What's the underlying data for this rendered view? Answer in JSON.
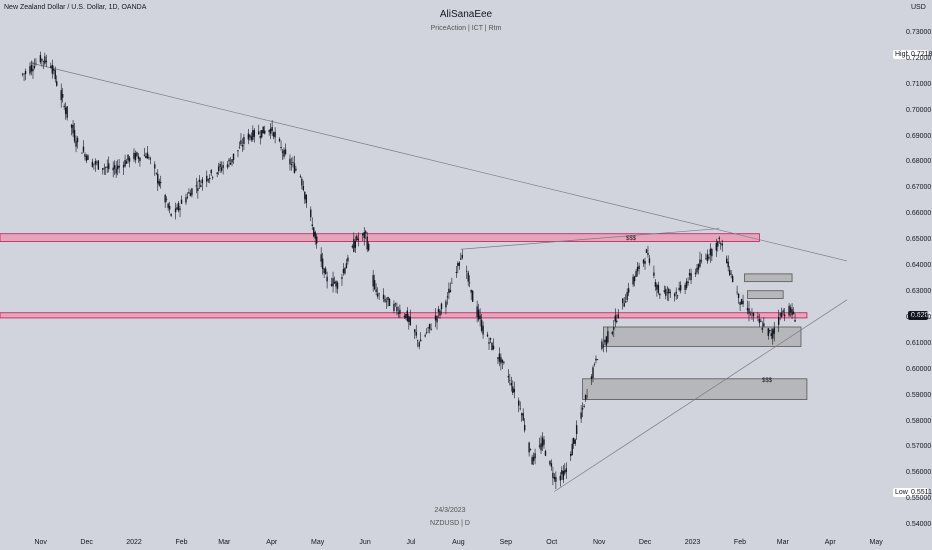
{
  "header": {
    "symbol_title": "New Zealand Dollar / U.S. Dollar, 1D, OANDA",
    "author": "AliSanaEee",
    "tags": "PriceAction | ICT | Rtm",
    "currency": "USD"
  },
  "footer": {
    "date": "24/3/2023",
    "ticker": "NZDUSD | D"
  },
  "price_labels": {
    "high_label": "High",
    "high_value": "0.72186",
    "current_value": "0.62015",
    "low_label": "Low",
    "low_value": "0.55118"
  },
  "annotations": {
    "liquidity_top": "$$$",
    "liquidity_bottom": "$$$"
  },
  "colors": {
    "background": "#d1d4dc",
    "candle": "#131722",
    "zone_red": "#e8a0b4",
    "zone_red_border": "#c2185b",
    "zone_gray": "#9e9e9e",
    "current_price_bg": "#131722"
  },
  "chart_data": {
    "type": "candlestick",
    "ylim": [
      0.542,
      0.735
    ],
    "y_ticks": [
      "0.73000",
      "0.72000",
      "0.71000",
      "0.70000",
      "0.69000",
      "0.68000",
      "0.67000",
      "0.66000",
      "0.65000",
      "0.64000",
      "0.63000",
      "0.62000",
      "0.61000",
      "0.60000",
      "0.59000",
      "0.58000",
      "0.57000",
      "0.56000",
      "0.55000",
      "0.54000"
    ],
    "x_ticks": [
      "Nov",
      "Dec",
      "2022",
      "Feb",
      "Mar",
      "Apr",
      "May",
      "Jun",
      "Jul",
      "Aug",
      "Sep",
      "Oct",
      "Nov",
      "Dec",
      "2023",
      "Feb",
      "Mar",
      "Apr",
      "May"
    ],
    "price_path": [
      [
        "2021-10-20",
        0.714
      ],
      [
        "2021-11-01",
        0.72
      ],
      [
        "2021-11-08",
        0.718
      ],
      [
        "2021-11-15",
        0.705
      ],
      [
        "2021-11-25",
        0.688
      ],
      [
        "2021-12-05",
        0.68
      ],
      [
        "2021-12-20",
        0.677
      ],
      [
        "2022-01-01",
        0.682
      ],
      [
        "2022-01-12",
        0.683
      ],
      [
        "2022-01-20",
        0.672
      ],
      [
        "2022-01-28",
        0.659
      ],
      [
        "2022-02-10",
        0.669
      ],
      [
        "2022-02-22",
        0.675
      ],
      [
        "2022-03-08",
        0.68
      ],
      [
        "2022-03-20",
        0.69
      ],
      [
        "2022-04-05",
        0.693
      ],
      [
        "2022-04-15",
        0.682
      ],
      [
        "2022-04-25",
        0.675
      ],
      [
        "2022-05-05",
        0.65
      ],
      [
        "2022-05-12",
        0.635
      ],
      [
        "2022-05-20",
        0.633
      ],
      [
        "2022-06-01",
        0.65
      ],
      [
        "2022-06-08",
        0.652
      ],
      [
        "2022-06-14",
        0.63
      ],
      [
        "2022-06-25",
        0.625
      ],
      [
        "2022-07-05",
        0.621
      ],
      [
        "2022-07-14",
        0.61
      ],
      [
        "2022-07-25",
        0.62
      ],
      [
        "2022-08-02",
        0.628
      ],
      [
        "2022-08-11",
        0.645
      ],
      [
        "2022-08-20",
        0.625
      ],
      [
        "2022-08-26",
        0.615
      ],
      [
        "2022-09-10",
        0.6
      ],
      [
        "2022-09-20",
        0.585
      ],
      [
        "2022-09-28",
        0.565
      ],
      [
        "2022-10-05",
        0.572
      ],
      [
        "2022-10-13",
        0.558
      ],
      [
        "2022-10-20",
        0.56
      ],
      [
        "2022-11-01",
        0.585
      ],
      [
        "2022-11-10",
        0.605
      ],
      [
        "2022-11-20",
        0.615
      ],
      [
        "2022-12-05",
        0.635
      ],
      [
        "2022-12-14",
        0.645
      ],
      [
        "2022-12-22",
        0.63
      ],
      [
        "2023-01-05",
        0.63
      ],
      [
        "2023-01-18",
        0.64
      ],
      [
        "2023-02-01",
        0.65
      ],
      [
        "2023-02-08",
        0.638
      ],
      [
        "2023-02-15",
        0.626
      ],
      [
        "2023-02-28",
        0.618
      ],
      [
        "2023-03-08",
        0.613
      ],
      [
        "2023-03-14",
        0.622
      ],
      [
        "2023-03-20",
        0.623
      ],
      [
        "2023-03-24",
        0.6202
      ]
    ],
    "high": 0.72186,
    "low": 0.55118,
    "last": 0.62015,
    "zones": [
      {
        "kind": "resistance",
        "color": "red",
        "from": "2021-10-01",
        "to": "2023-02-28",
        "low": 0.6495,
        "high": 0.6525
      },
      {
        "kind": "support",
        "color": "red",
        "from": "2021-10-01",
        "to": "2023-04-01",
        "low": 0.62,
        "high": 0.622
      },
      {
        "kind": "order_block",
        "color": "gray",
        "from": "2022-11-15",
        "to": "2023-03-28",
        "low": 0.609,
        "high": 0.6165
      },
      {
        "kind": "imbalance",
        "color": "gray",
        "from": "2022-11-01",
        "to": "2023-04-01",
        "low": 0.5885,
        "high": 0.5965
      },
      {
        "kind": "box",
        "color": "gray",
        "from": "2023-02-18",
        "to": "2023-03-22",
        "low": 0.634,
        "high": 0.637
      },
      {
        "kind": "box",
        "color": "gray",
        "from": "2023-02-20",
        "to": "2023-03-16",
        "low": 0.6275,
        "high": 0.6305
      }
    ],
    "trendlines": [
      {
        "from": [
          "2021-10-25",
          0.7185
        ],
        "to": [
          "2023-04-28",
          0.642
        ]
      },
      {
        "from": [
          "2022-10-13",
          0.553
        ],
        "to": [
          "2023-04-28",
          0.627
        ]
      },
      {
        "from": [
          "2022-08-11",
          0.6465
        ],
        "to": [
          "2023-02-01",
          0.6545
        ]
      }
    ]
  }
}
